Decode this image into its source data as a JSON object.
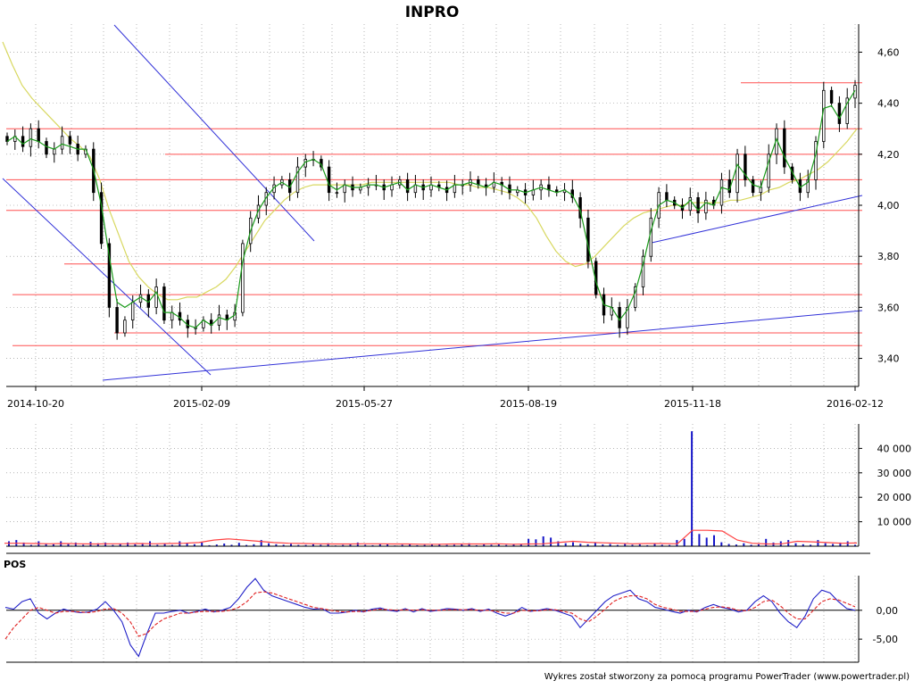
{
  "chart_data": [
    {
      "type": "candlestick",
      "title": "INPRO",
      "x_tick_labels": [
        "2014-10-20",
        "2015-02-09",
        "2015-05-27",
        "2015-08-19",
        "2015-11-18",
        "2016-02-12"
      ],
      "y_ticks": [
        "3,40",
        "3,60",
        "3,80",
        "4,00",
        "4,20",
        "4,40",
        "4,60"
      ],
      "y_tick_values": [
        3.4,
        3.6,
        3.8,
        4.0,
        4.2,
        4.4,
        4.6
      ],
      "ylim": [
        3.29,
        4.71
      ],
      "grid": true,
      "colors": {
        "close_ma": "#1a9a1a",
        "long_ma": "#d8d860",
        "horizontal_levels": "#ff5050",
        "trendlines": "#3232d8",
        "candle": "#000000"
      },
      "horizontal_levels": [
        4.48,
        4.3,
        4.2,
        4.1,
        3.98,
        3.77,
        3.65,
        3.5,
        3.45
      ],
      "closes": [
        4.25,
        4.27,
        4.23,
        4.3,
        4.25,
        4.2,
        4.22,
        4.27,
        4.24,
        4.2,
        4.22,
        4.05,
        3.85,
        3.6,
        3.5,
        3.55,
        3.62,
        3.65,
        3.6,
        3.68,
        3.55,
        3.58,
        3.55,
        3.52,
        3.52,
        3.55,
        3.53,
        3.57,
        3.55,
        3.58,
        3.85,
        3.95,
        4.0,
        4.05,
        4.08,
        4.1,
        4.05,
        4.15,
        4.18,
        4.18,
        4.15,
        4.05,
        4.05,
        4.08,
        4.06,
        4.07,
        4.08,
        4.08,
        4.06,
        4.08,
        4.1,
        4.05,
        4.08,
        4.06,
        4.08,
        4.07,
        4.05,
        4.08,
        4.08,
        4.1,
        4.08,
        4.07,
        4.09,
        4.08,
        4.05,
        4.06,
        4.04,
        4.06,
        4.08,
        4.06,
        4.05,
        4.06,
        4.03,
        3.95,
        3.78,
        3.65,
        3.57,
        3.6,
        3.52,
        3.6,
        3.68,
        3.8,
        3.95,
        4.05,
        4.02,
        4.0,
        3.98,
        4.03,
        3.97,
        4.02,
        4.0,
        4.1,
        4.05,
        4.2,
        4.1,
        4.05,
        4.07,
        4.2,
        4.3,
        4.15,
        4.1,
        4.05,
        4.1,
        4.25,
        4.45,
        4.4,
        4.32,
        4.42,
        4.47
      ],
      "close_ma": [
        4.25,
        4.27,
        4.24,
        4.26,
        4.25,
        4.23,
        4.22,
        4.24,
        4.23,
        4.22,
        4.22,
        4.14,
        4.0,
        3.8,
        3.62,
        3.6,
        3.62,
        3.64,
        3.62,
        3.66,
        3.58,
        3.58,
        3.56,
        3.53,
        3.52,
        3.55,
        3.53,
        3.56,
        3.55,
        3.57,
        3.78,
        3.9,
        3.98,
        4.03,
        4.07,
        4.09,
        4.07,
        4.13,
        4.17,
        4.18,
        4.16,
        4.08,
        4.06,
        4.08,
        4.07,
        4.07,
        4.08,
        4.08,
        4.07,
        4.08,
        4.09,
        4.06,
        4.08,
        4.07,
        4.08,
        4.07,
        4.06,
        4.08,
        4.08,
        4.09,
        4.08,
        4.07,
        4.09,
        4.08,
        4.06,
        4.06,
        4.05,
        4.06,
        4.07,
        4.06,
        4.05,
        4.06,
        4.04,
        3.98,
        3.84,
        3.7,
        3.61,
        3.6,
        3.55,
        3.59,
        3.66,
        3.77,
        3.9,
        4.0,
        4.02,
        4.01,
        3.99,
        4.02,
        3.98,
        4.01,
        4.0,
        4.07,
        4.06,
        4.16,
        4.12,
        4.08,
        4.07,
        4.17,
        4.26,
        4.19,
        4.13,
        4.07,
        4.09,
        4.2,
        4.38,
        4.39,
        4.34,
        4.4,
        4.45
      ],
      "long_ma": [
        4.64,
        4.55,
        4.47,
        4.42,
        4.38,
        4.34,
        4.3,
        4.26,
        4.23,
        4.19,
        4.1,
        3.98,
        3.88,
        3.78,
        3.72,
        3.68,
        3.65,
        3.63,
        3.63,
        3.64,
        3.64,
        3.66,
        3.68,
        3.71,
        3.76,
        3.82,
        3.88,
        3.94,
        3.98,
        4.02,
        4.05,
        4.07,
        4.08,
        4.08,
        4.08,
        4.08,
        4.08,
        4.08,
        4.09,
        4.09,
        4.09,
        4.09,
        4.09,
        4.09,
        4.09,
        4.09,
        4.09,
        4.08,
        4.08,
        4.07,
        4.07,
        4.06,
        4.05,
        4.03,
        4.0,
        3.95,
        3.88,
        3.82,
        3.78,
        3.76,
        3.77,
        3.8,
        3.84,
        3.88,
        3.92,
        3.95,
        3.97,
        3.98,
        3.99,
        4.0,
        4.0,
        4.01,
        4.01,
        4.01,
        4.01,
        4.02,
        4.02,
        4.03,
        4.04,
        4.06,
        4.07,
        4.09,
        4.1,
        4.12,
        4.14,
        4.17,
        4.21,
        4.25,
        4.3
      ]
    },
    {
      "type": "bar",
      "series_name": "volume",
      "y_ticks": [
        "10 000",
        "20 000",
        "30 000",
        "40 000"
      ],
      "y_tick_values": [
        10000,
        20000,
        30000,
        40000
      ],
      "ylim": [
        0,
        50000
      ],
      "colors": {
        "bars": "#1515c8",
        "moving_average": "#ff4040"
      },
      "values": [
        2000,
        2500,
        1500,
        500,
        2000,
        1000,
        800,
        2000,
        1200,
        1500,
        600,
        1800,
        1200,
        1500,
        500,
        900,
        1500,
        800,
        1300,
        2000,
        600,
        1000,
        500,
        2000,
        1200,
        800,
        1500,
        400,
        700,
        1100,
        600,
        1400,
        500,
        800,
        2500,
        1200,
        800,
        600,
        1000,
        500,
        500,
        800,
        600,
        1200,
        300,
        500,
        700,
        1500,
        600,
        400,
        1000,
        800,
        300,
        600,
        900,
        400,
        500,
        700,
        800,
        500,
        600,
        900,
        1200,
        400,
        700,
        600,
        800,
        500,
        900,
        700,
        3000,
        2800,
        4000,
        3500,
        2000,
        1200,
        1600,
        1000,
        800,
        1400,
        700,
        900,
        500,
        1000,
        600,
        800,
        400,
        1000,
        600,
        500,
        2500,
        3000,
        47000,
        5000,
        3500,
        4500,
        1600,
        900,
        700,
        1200,
        600,
        800,
        3000,
        1500,
        2000,
        2500,
        1200,
        800,
        600,
        2500,
        1200,
        900,
        1500,
        2000,
        600
      ],
      "moving_average": [
        1200,
        1200,
        1100,
        1000,
        1100,
        1000,
        900,
        1000,
        1000,
        1100,
        1000,
        1100,
        1200,
        1500,
        2500,
        3000,
        2500,
        2000,
        1500,
        1200,
        1100,
        1000,
        900,
        900,
        1000,
        1000,
        900,
        900,
        800,
        800,
        900,
        900,
        900,
        1000,
        800,
        900,
        1000,
        1500,
        2000,
        1600,
        1400,
        1200,
        1000,
        1100,
        1100,
        1000,
        6500,
        6500,
        6200,
        2500,
        1200,
        900,
        1000,
        2000,
        1800,
        1500,
        1200,
        1300
      ]
    },
    {
      "type": "line",
      "title": "POS",
      "y_ticks": [
        "0,00",
        "-5,00"
      ],
      "y_tick_values": [
        0,
        -5
      ],
      "ylim": [
        -9,
        6
      ],
      "colors": {
        "oscillator": "#2020c8",
        "signal": "#e02020"
      },
      "oscillator": [
        0.5,
        0.2,
        1.5,
        2,
        -0.5,
        -1.5,
        -0.5,
        0.2,
        -0.2,
        -0.4,
        -0.3,
        0.2,
        1.5,
        0,
        -2,
        -6,
        -8,
        -4,
        -0.5,
        -0.5,
        -0.2,
        0,
        -0.5,
        -0.2,
        0.2,
        -0.3,
        0,
        0.5,
        2,
        4,
        5.5,
        3.5,
        2.5,
        2,
        1.5,
        1,
        0.5,
        0.2,
        0.3,
        -0.5,
        -0.5,
        -0.3,
        0,
        -0.3,
        0.2,
        0.4,
        0,
        -0.2,
        0.3,
        -0.3,
        0.3,
        -0.2,
        0,
        0.3,
        0.2,
        0,
        0.3,
        -0.2,
        0.2,
        -0.5,
        -1,
        -0.5,
        0.5,
        -0.2,
        0,
        0.3,
        0,
        -0.5,
        -1,
        -3,
        -1.5,
        0,
        1.5,
        2.5,
        3,
        3.5,
        2,
        1.5,
        0.5,
        0.2,
        -0.2,
        -0.5,
        0,
        -0.3,
        0.5,
        1,
        0.5,
        0.2,
        -0.3,
        0,
        1.5,
        2.5,
        1.5,
        -0.5,
        -2,
        -3,
        -1,
        2,
        3.5,
        3,
        1.5,
        0.3,
        0
      ],
      "signal": [
        -5,
        -3,
        -1.5,
        0,
        0.5,
        0,
        -0.5,
        -0.2,
        -0.2,
        -0.3,
        -0.4,
        -0.2,
        0.2,
        0.3,
        -0.5,
        -2,
        -4.5,
        -4,
        -2.5,
        -1.5,
        -1,
        -0.5,
        -0.5,
        -0.3,
        -0.2,
        -0.2,
        -0.2,
        0,
        0.5,
        1.5,
        3,
        3.2,
        3,
        2.5,
        2,
        1.5,
        1,
        0.5,
        0.3,
        0,
        -0.2,
        -0.3,
        -0.2,
        -0.2,
        0,
        0.2,
        0.1,
        0,
        0.1,
        0,
        0.1,
        0,
        0,
        0.1,
        0.1,
        0.1,
        0.1,
        0,
        0,
        -0.2,
        -0.5,
        -0.5,
        0,
        -0.1,
        -0.1,
        0.1,
        0.1,
        -0.2,
        -0.5,
        -1.5,
        -2,
        -1,
        0.2,
        1.5,
        2.2,
        2.5,
        2.5,
        2,
        1,
        0.5,
        0.2,
        -0.2,
        -0.2,
        -0.2,
        0.2,
        0.5,
        0.6,
        0.4,
        0,
        -0.1,
        0.5,
        1.5,
        1.8,
        0.8,
        -0.5,
        -1.5,
        -1.5,
        0,
        1.5,
        2,
        1.8,
        1.2,
        0.6
      ]
    }
  ],
  "footer": "Wykres został stworzony za pomocą programu PowerTrader (www.powertrader.pl)"
}
